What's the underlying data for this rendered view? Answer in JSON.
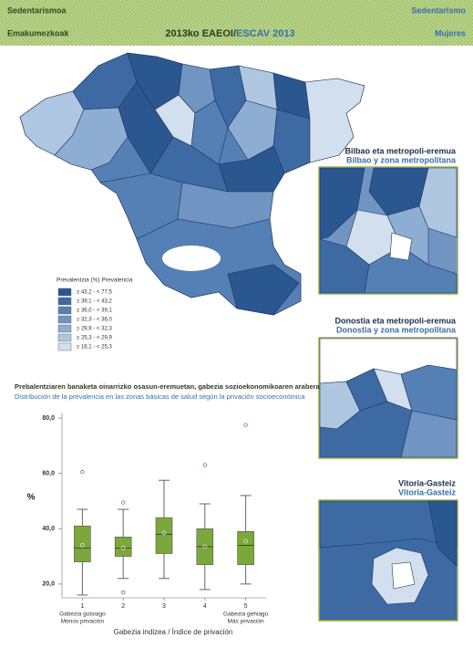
{
  "header": {
    "left_top": "Sedentarismoa",
    "left_bottom": "Emakumezkoak",
    "right_top": "Sedentarismo",
    "right_bottom": "Mujeres",
    "title_part1": "2013ko EAEOI/",
    "title_part2": "ESCAV 2013"
  },
  "map": {
    "legend_title": "Prevalentzia (%) Prevalencia",
    "legend": [
      {
        "label": "≥ 43,2 - < 77,5",
        "color": "#2a5790"
      },
      {
        "label": "≥ 39,1 - < 43,2",
        "color": "#3d6aa3"
      },
      {
        "label": "≥ 36,0 - < 39,1",
        "color": "#5580b5"
      },
      {
        "label": "≥ 32,3 - < 36,0",
        "color": "#7095c2"
      },
      {
        "label": "≥ 29,9 - < 32,3",
        "color": "#8eadd2"
      },
      {
        "label": "≥ 25,3 - < 29,9",
        "color": "#afc6e1"
      },
      {
        "label": "≥ 16,1 - < 25,3",
        "color": "#d2dfee"
      }
    ]
  },
  "insets": [
    {
      "title_eu": "Bilbao eta metropoli-eremua",
      "title_es": "Bilbao y zona metropolitana"
    },
    {
      "title_eu": "Donostia eta metropoli-eremua",
      "title_es": "Donostia y zona metropolitana"
    },
    {
      "title_eu": "Vitoria-Gasteiz",
      "title_es": "Vitoria-Gasteiz"
    }
  ],
  "section": {
    "title_eu": "Prebalentziaren banaketa oinarrizko osasun-eremuetan, gabezia sozioekonomikoaren arabera",
    "title_es": "Distribución de la prevalencia en las zonas básicas de salud según la privación socioeconómica"
  },
  "chart_data": {
    "type": "box",
    "categories": [
      "1",
      "2",
      "3",
      "4",
      "5"
    ],
    "category_sublabels": [
      [
        "Gabezia gutxiago",
        "Menos privación"
      ],
      null,
      null,
      null,
      [
        "Gabezia gehiago",
        "Más privación"
      ]
    ],
    "x_label": "Gabezia indizea / Índice de privación",
    "y_label": "%",
    "ylim": [
      15,
      82
    ],
    "yticks": [
      {
        "value": 20,
        "label": "20,0"
      },
      {
        "value": 40,
        "label": "40,0"
      },
      {
        "value": 60,
        "label": "60,0"
      },
      {
        "value": 80,
        "label": "80,0"
      }
    ],
    "series": [
      {
        "color": "#7aa83a",
        "min": [
          16,
          22,
          22,
          18,
          20
        ],
        "q1": [
          28,
          30,
          31,
          27,
          27
        ],
        "median": [
          33,
          33,
          38,
          33.5,
          34
        ],
        "q3": [
          41,
          37,
          44,
          40,
          39
        ],
        "max": [
          47,
          47,
          57.5,
          49,
          52
        ],
        "mean": [
          34,
          33,
          38.5,
          33.5,
          35.5
        ],
        "outliers": [
          [
            60.5
          ],
          [
            49.5,
            17
          ],
          [],
          [
            63
          ],
          [
            77.5
          ]
        ]
      }
    ]
  }
}
